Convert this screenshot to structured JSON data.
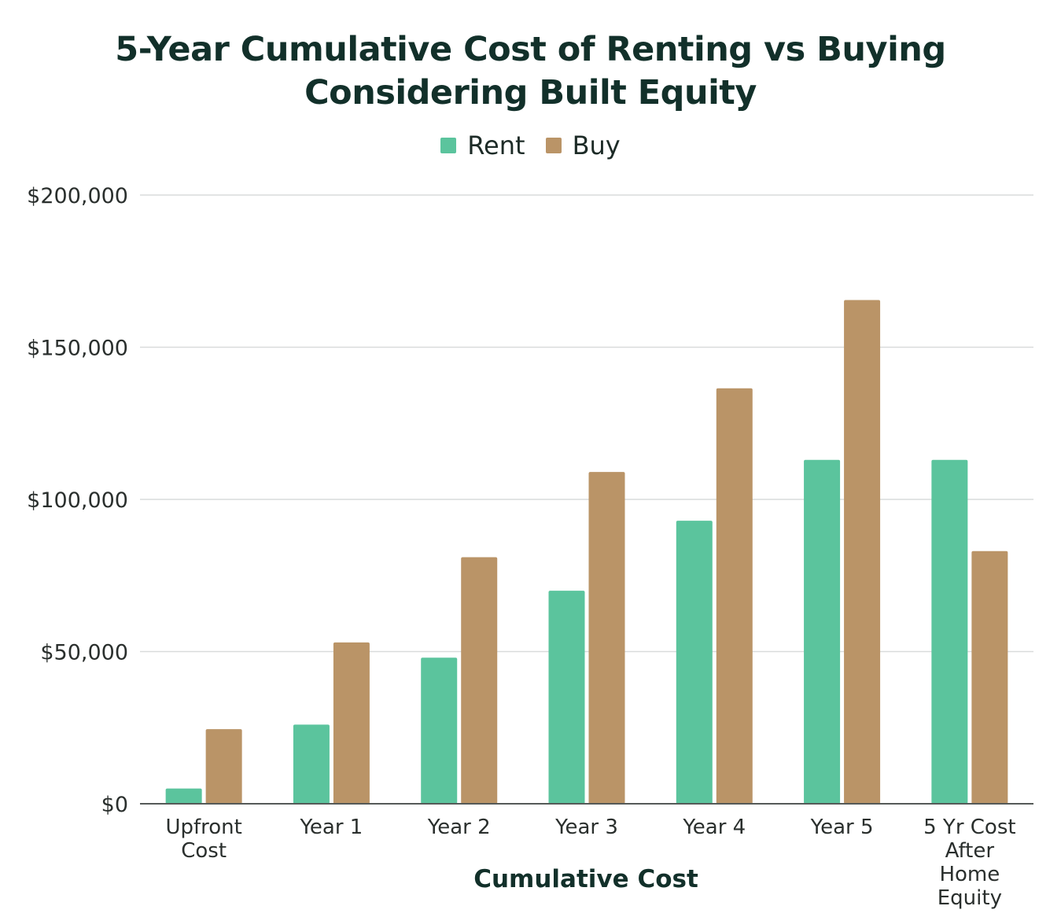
{
  "chart_data": {
    "type": "bar",
    "title_lines": [
      "5-Year Cumulative Cost of Renting vs Buying",
      "Considering Built Equity"
    ],
    "xlabel": "Cumulative Cost",
    "ylabel": "",
    "categories": [
      [
        "Upfront",
        "Cost"
      ],
      [
        "Year 1"
      ],
      [
        "Year 2"
      ],
      [
        "Year 3"
      ],
      [
        "Year 4"
      ],
      [
        "Year 5"
      ],
      [
        "5 Yr Cost",
        "After",
        "Home",
        "Equity"
      ]
    ],
    "series": [
      {
        "name": "Rent",
        "color": "#5bc49d",
        "values": [
          5000,
          26000,
          48000,
          70000,
          93000,
          113000,
          113000
        ]
      },
      {
        "name": "Buy",
        "color": "#ba9467",
        "values": [
          24500,
          53000,
          81000,
          109000,
          136500,
          165500,
          83000
        ]
      }
    ],
    "ylim": [
      0,
      200000
    ],
    "yticks": [
      0,
      50000,
      100000,
      150000,
      200000
    ],
    "ytick_labels": [
      "$0",
      "$50,000",
      "$100,000",
      "$150,000",
      "$200,000"
    ],
    "grid": true,
    "legend_position": "top-center"
  }
}
